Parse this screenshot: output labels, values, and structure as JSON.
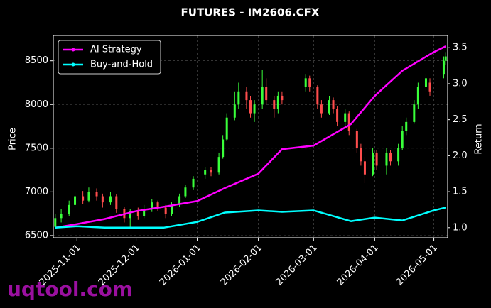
{
  "chart_data": {
    "type": "candlestick",
    "title": "FUTURES - IM2606.CFX",
    "y_label": "Price",
    "y2_label": "Return",
    "watermark": "uqtool.com",
    "x": [
      "2025-10-21",
      "2025-10-24",
      "2025-10-28",
      "2025-10-31",
      "2025-11-04",
      "2025-11-07",
      "2025-11-11",
      "2025-11-14",
      "2025-11-18",
      "2025-11-21",
      "2025-11-25",
      "2025-11-28",
      "2025-12-02",
      "2025-12-05",
      "2025-12-09",
      "2025-12-12",
      "2025-12-16",
      "2025-12-19",
      "2025-12-23",
      "2025-12-26",
      "2025-12-30",
      "2026-01-05",
      "2026-01-08",
      "2026-01-12",
      "2026-01-14",
      "2026-01-16",
      "2026-01-20",
      "2026-01-22",
      "2026-01-26",
      "2026-01-28",
      "2026-01-30",
      "2026-02-03",
      "2026-02-05",
      "2026-02-09",
      "2026-02-11",
      "2026-02-13",
      "2026-02-25",
      "2026-02-27",
      "2026-03-03",
      "2026-03-05",
      "2026-03-09",
      "2026-03-11",
      "2026-03-13",
      "2026-03-17",
      "2026-03-19",
      "2026-03-23",
      "2026-03-25",
      "2026-03-27",
      "2026-03-31",
      "2026-04-02",
      "2026-04-07",
      "2026-04-09",
      "2026-04-13",
      "2026-04-15",
      "2026-04-17",
      "2026-04-21",
      "2026-04-23",
      "2026-04-27",
      "2026-04-29",
      "2026-05-06",
      "2026-05-07"
    ],
    "open": [
      6600,
      6700,
      6750,
      6850,
      6950,
      6900,
      7000,
      6950,
      6880,
      6950,
      6800,
      6700,
      6780,
      6720,
      6800,
      6880,
      6820,
      6750,
      6850,
      6950,
      7050,
      7200,
      7250,
      7220,
      7400,
      7600,
      7850,
      8000,
      8150,
      8050,
      7900,
      8000,
      8200,
      8050,
      7950,
      8100,
      8200,
      8300,
      8200,
      8000,
      7900,
      8050,
      7950,
      7800,
      7900,
      7700,
      7500,
      7350,
      7200,
      7450,
      7300,
      7450,
      7350,
      7500,
      7700,
      7800,
      8000,
      8200,
      8250,
      8350,
      8500
    ],
    "close": [
      6700,
      6750,
      6850,
      6950,
      6900,
      7000,
      6950,
      6880,
      6950,
      6800,
      6700,
      6780,
      6720,
      6800,
      6880,
      6820,
      6750,
      6850,
      6950,
      7050,
      7150,
      7250,
      7220,
      7400,
      7600,
      7850,
      8000,
      8150,
      8050,
      7900,
      8000,
      8200,
      8050,
      7950,
      8100,
      8050,
      8300,
      8200,
      8000,
      7900,
      8050,
      7950,
      7800,
      7900,
      7700,
      7500,
      7350,
      7200,
      7450,
      7300,
      7450,
      7350,
      7500,
      7700,
      7800,
      8000,
      8200,
      8300,
      8150,
      8500,
      8550
    ],
    "high": [
      6750,
      6800,
      6900,
      7000,
      7010,
      7050,
      7040,
      6980,
      7000,
      6970,
      6830,
      6800,
      6820,
      6850,
      6920,
      6900,
      6850,
      6880,
      6980,
      7080,
      7180,
      7280,
      7280,
      7450,
      7650,
      7900,
      8150,
      8250,
      8200,
      8100,
      8050,
      8400,
      8300,
      8100,
      8150,
      8150,
      8350,
      8330,
      8220,
      8050,
      8100,
      8080,
      7980,
      7950,
      7920,
      7720,
      7550,
      7400,
      7500,
      7480,
      7500,
      7480,
      7550,
      7750,
      7850,
      8050,
      8250,
      8350,
      8300,
      8550,
      8600
    ],
    "low": [
      6580,
      6650,
      6720,
      6820,
      6860,
      6880,
      6900,
      6820,
      6850,
      6760,
      6650,
      6600,
      6680,
      6700,
      6770,
      6780,
      6700,
      6720,
      6830,
      6930,
      7020,
      7150,
      7180,
      7200,
      7380,
      7580,
      7820,
      7950,
      7950,
      7850,
      7800,
      7950,
      8000,
      7850,
      7900,
      8000,
      8150,
      8150,
      7950,
      7850,
      7880,
      7900,
      7750,
      7750,
      7650,
      7450,
      7300,
      7100,
      7180,
      7250,
      7200,
      7300,
      7300,
      7480,
      7650,
      7780,
      7950,
      8150,
      8100,
      8300,
      8450
    ],
    "up_color": "#39ff3a",
    "down_color": "#ff4d4d",
    "lines": {
      "x": [
        "2025-10-21",
        "2025-11-01",
        "2025-11-15",
        "2025-12-01",
        "2025-12-15",
        "2026-01-01",
        "2026-01-15",
        "2026-02-01",
        "2026-02-13",
        "2026-03-01",
        "2026-03-20",
        "2026-04-01",
        "2026-04-15",
        "2026-05-01",
        "2026-05-07"
      ],
      "series": [
        {
          "name": "AI Strategy",
          "color": "#ff00ff",
          "axis": "y2",
          "values": [
            1.0,
            1.05,
            1.12,
            1.23,
            1.29,
            1.37,
            1.55,
            1.75,
            2.09,
            2.14,
            2.44,
            2.83,
            3.18,
            3.44,
            3.52
          ]
        },
        {
          "name": "Buy-and-Hold",
          "color": "#00ffff",
          "axis": "y2",
          "values": [
            1.0,
            1.02,
            1.0,
            1.0,
            1.0,
            1.08,
            1.21,
            1.24,
            1.22,
            1.24,
            1.09,
            1.14,
            1.1,
            1.24,
            1.28
          ]
        }
      ]
    },
    "xlim": [
      "2025-10-20",
      "2026-05-08"
    ],
    "xticks": [
      "2025-11-01",
      "2025-12-01",
      "2026-01-01",
      "2026-02-01",
      "2026-03-01",
      "2026-04-01",
      "2026-05-01"
    ],
    "ylim": [
      6475,
      8790
    ],
    "yticks": [
      6500,
      7000,
      7500,
      8000,
      8500
    ],
    "y2lim": [
      0.86,
      3.67
    ],
    "y2ticks": [
      {
        "value": 1,
        "label": "1.0"
      },
      1.5,
      {
        "value": 2,
        "label": "2.0"
      },
      2.5,
      {
        "value": 3,
        "label": "3.0"
      },
      3.5
    ],
    "grid": true,
    "legend": "upper left"
  }
}
